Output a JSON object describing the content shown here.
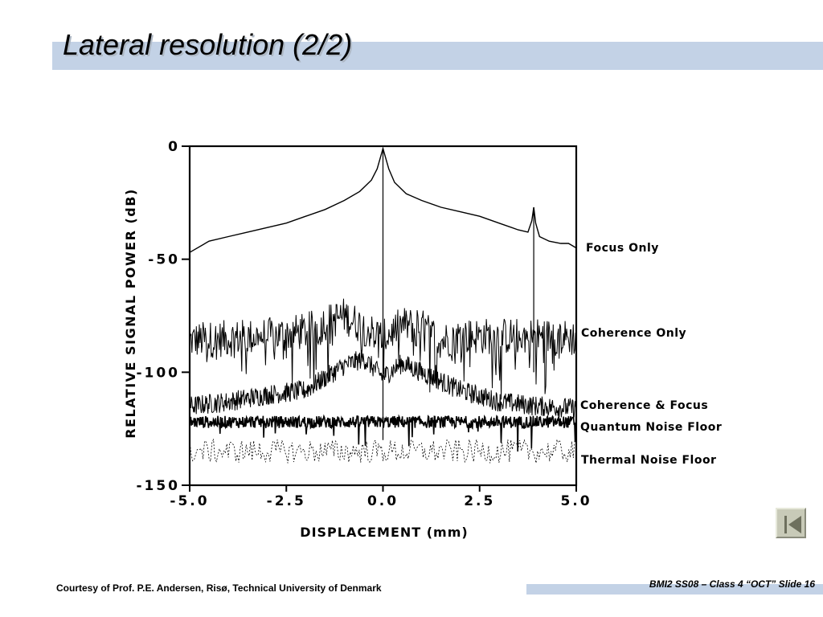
{
  "slide": {
    "title": "Lateral resolution (2/2)",
    "credit": "Courtesy of Prof. P.E. Andersen, Risø, Technical University of Denmark",
    "slide_label": "BMI2 SS08 – Class 4 “OCT” Slide 16",
    "nav_icon": "first-slide-icon",
    "accent_color": "#c3d2e6"
  },
  "chart_data": {
    "type": "line",
    "xlabel": "DISPLACEMENT   (mm)",
    "ylabel": "RELATIVE  SIGNAL  POWER  (dB)",
    "xlim": [
      -5.0,
      5.0
    ],
    "ylim": [
      -150,
      0
    ],
    "x_ticks": [
      -5.0,
      -2.5,
      0.0,
      2.5,
      5.0
    ],
    "x_tick_labels": [
      "-5.0",
      "-2.5",
      "0.0",
      "2.5",
      "5.0"
    ],
    "y_ticks": [
      0,
      -50,
      -100,
      -150
    ],
    "y_tick_labels": [
      "0",
      "-50",
      "-100",
      "-150"
    ],
    "grid": false,
    "series": [
      {
        "name": "Focus  Only",
        "style": "solid",
        "x": [
          -5.0,
          -4.5,
          -4.0,
          -3.5,
          -3.0,
          -2.5,
          -2.0,
          -1.5,
          -1.0,
          -0.6,
          -0.3,
          -0.15,
          0.0,
          0.15,
          0.3,
          0.6,
          1.0,
          1.5,
          2.0,
          2.5,
          3.0,
          3.5,
          3.75,
          3.85,
          3.9,
          3.95,
          4.05,
          4.3,
          4.6,
          4.8,
          5.0
        ],
        "y": [
          -47,
          -42,
          -40,
          -38,
          -36,
          -34,
          -31,
          -28,
          -24,
          -20,
          -15,
          -10,
          -1,
          -10,
          -16,
          -21,
          -24,
          -27,
          -29,
          -31,
          -34,
          -37,
          -38,
          -33,
          -27,
          -34,
          -40,
          -42,
          -43,
          -43,
          -45
        ]
      },
      {
        "name": "Coherence  Only",
        "style": "noisy",
        "x": [
          -5.0,
          -4.0,
          -3.0,
          -2.0,
          -1.5,
          -1.0,
          -0.5,
          0.0,
          0.5,
          1.0,
          1.5,
          2.0,
          3.0,
          4.0,
          5.0
        ],
        "y": [
          -86,
          -85,
          -84,
          -82,
          -78,
          -75,
          -80,
          -85,
          -79,
          -80,
          -86,
          -84,
          -84,
          -84,
          -85
        ]
      },
      {
        "name": "Coherence  &  Focus",
        "style": "noisy",
        "x": [
          -5.0,
          -4.0,
          -3.0,
          -2.0,
          -1.0,
          -0.5,
          0.0,
          0.5,
          1.0,
          2.0,
          3.0,
          4.0,
          5.0
        ],
        "y": [
          -115,
          -113,
          -110,
          -108,
          -97,
          -94,
          -102,
          -96,
          -100,
          -108,
          -113,
          -115,
          -116
        ]
      },
      {
        "name": "Quantum  Noise  Floor",
        "style": "noisy",
        "x": [
          -5.0,
          -2.5,
          0.0,
          2.5,
          5.0
        ],
        "y": [
          -122,
          -122,
          -122,
          -122,
          -122
        ]
      },
      {
        "name": "Thermal  Noise  Floor",
        "style": "dashed",
        "x": [
          -5.0,
          -2.5,
          0.0,
          2.5,
          5.0
        ],
        "y": [
          -135,
          -135,
          -135,
          -135,
          -135
        ]
      }
    ]
  }
}
